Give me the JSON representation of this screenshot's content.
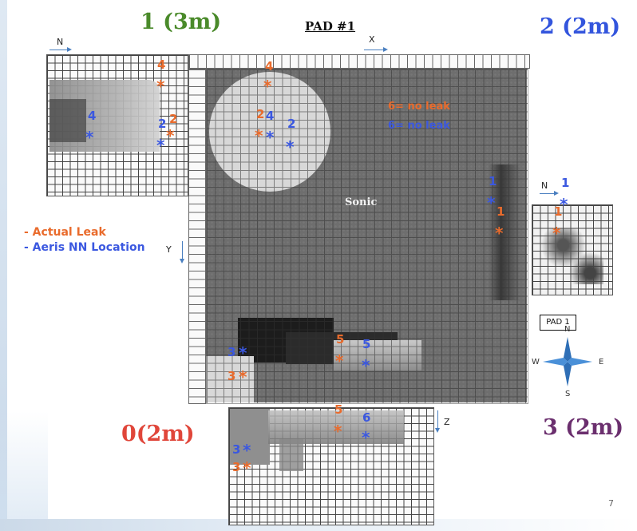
{
  "titles": {
    "top_left": "1 (3m)",
    "top_right": "2 (2m)",
    "bottom_left": "0(2m)",
    "bottom_right": "3 (2m)",
    "pad": "PAD #1"
  },
  "axes": {
    "x": "X",
    "y": "Y",
    "z": "Z",
    "n": "N"
  },
  "notes": {
    "orange": "6= no leak",
    "blue": "6= no leak"
  },
  "sonic": "Sonic",
  "legend": {
    "actual": "- Actual Leak",
    "aeris": "- Aeris NN Location"
  },
  "pad_box": "PAD 1",
  "compass": {
    "n": "N",
    "s": "S",
    "e": "E",
    "w": "W"
  },
  "page_number": "7",
  "markers": {
    "num1": "1",
    "num2": "2",
    "num3": "3",
    "num4": "4",
    "num5": "5",
    "num6": "6",
    "star": "*"
  },
  "colors": {
    "actual_leak": "#e96b2c",
    "aeris_nn": "#3b58e0",
    "title_1": "#4a8a2a",
    "title_2": "#3355dd",
    "title_0": "#e0463a",
    "title_3": "#6b2f6e"
  }
}
